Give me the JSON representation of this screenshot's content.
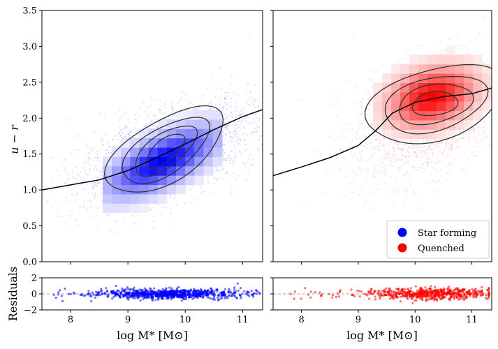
{
  "chart_data": [
    {
      "type": "scatter",
      "name": "star-forming-main",
      "xlabel": "log M* [M⊙]",
      "ylabel": "u − r",
      "xlim": [
        7.5,
        11.35
      ],
      "ylim": [
        0.0,
        3.5
      ],
      "xticks": [
        "8",
        "9",
        "10",
        "11"
      ],
      "xtick_values": [
        8,
        9,
        10,
        11
      ],
      "yticks": [
        "0.0",
        "0.5",
        "1.0",
        "1.5",
        "2.0",
        "2.5",
        "3.0",
        "3.5"
      ],
      "ytick_values": [
        0.0,
        0.5,
        1.0,
        1.5,
        2.0,
        2.5,
        3.0,
        3.5
      ],
      "color": "#0000ff",
      "cloud": {
        "center": [
          9.7,
          1.5
        ],
        "sx": 0.75,
        "sy": 0.35,
        "rho": 0.55,
        "n": 2600
      },
      "heat_center": [
        9.6,
        1.4
      ],
      "contour_center": [
        9.65,
        1.55
      ],
      "contour_levels": [
        {
          "a": 0.12,
          "b": 0.95,
          "angle_deg": 38
        },
        {
          "a": 0.28,
          "b": 0.72,
          "angle_deg": 40
        },
        {
          "a": 0.42,
          "b": 0.54,
          "angle_deg": 44
        },
        {
          "a": 0.58,
          "b": 0.36,
          "angle_deg": 48
        }
      ],
      "trend_line": {
        "x": [
          7.5,
          8.0,
          8.5,
          9.0,
          9.5,
          10.0,
          10.5,
          11.0,
          11.35
        ],
        "y": [
          1.0,
          1.07,
          1.14,
          1.27,
          1.45,
          1.64,
          1.84,
          2.02,
          2.12
        ]
      }
    },
    {
      "type": "scatter",
      "name": "quenched-main",
      "xlabel": "log M* [M⊙]",
      "ylabel": "",
      "xlim": [
        7.5,
        11.35
      ],
      "ylim": [
        0.0,
        3.5
      ],
      "xticks": [
        "8",
        "9",
        "10",
        "11"
      ],
      "xtick_values": [
        8,
        9,
        10,
        11
      ],
      "color": "#ff0000",
      "cloud": {
        "center": [
          10.2,
          2.0
        ],
        "sx": 0.65,
        "sy": 0.45,
        "rho": 0.4,
        "n": 1500
      },
      "heat_center": [
        10.3,
        2.3
      ],
      "contour_center": [
        10.35,
        2.2
      ],
      "contour_levels": [
        {
          "a": 0.1,
          "b": 0.95,
          "angle_deg": 20
        },
        {
          "a": 0.25,
          "b": 0.7,
          "angle_deg": 18
        },
        {
          "a": 0.4,
          "b": 0.5,
          "angle_deg": 15
        },
        {
          "a": 0.55,
          "b": 0.3,
          "angle_deg": 10
        }
      ],
      "trend_line": {
        "x": [
          7.5,
          8.0,
          8.5,
          9.0,
          9.3,
          9.6,
          10.0,
          10.5,
          11.0,
          11.35
        ],
        "y": [
          1.2,
          1.32,
          1.45,
          1.62,
          1.82,
          2.07,
          2.22,
          2.3,
          2.34,
          2.42
        ]
      },
      "legend": {
        "position": "lower-right",
        "entries": [
          {
            "label": "Star forming",
            "color": "#0000ff"
          },
          {
            "label": "Quenched",
            "color": "#ff0000"
          }
        ]
      }
    },
    {
      "type": "scatter",
      "name": "residuals-star-forming",
      "xlabel": "log M* [M⊙]",
      "ylabel": "Residuals",
      "xlim": [
        7.5,
        11.35
      ],
      "ylim": [
        -2,
        2
      ],
      "xticks": [
        "8",
        "9",
        "10",
        "11"
      ],
      "xtick_values": [
        8,
        9,
        10,
        11
      ],
      "yticks": [
        "2",
        "0",
        "−2"
      ],
      "ytick_values": [
        2,
        0,
        -2
      ],
      "color": "#0000ff",
      "points": {
        "x_range": [
          7.7,
          11.3
        ],
        "center": 9.7,
        "spread": 0.6,
        "sigma": 0.3,
        "n": 900
      },
      "reference_line": 0
    },
    {
      "type": "scatter",
      "name": "residuals-quenched",
      "xlabel": "log M* [M⊙]",
      "ylabel": "",
      "xlim": [
        7.5,
        11.35
      ],
      "ylim": [
        -2,
        2
      ],
      "xticks": [
        "8",
        "9",
        "10",
        "11"
      ],
      "xtick_values": [
        8,
        9,
        10,
        11
      ],
      "color": "#ff0000",
      "points": {
        "x_range": [
          7.8,
          11.3
        ],
        "center": 10.3,
        "spread": 0.55,
        "sigma": 0.35,
        "n": 650
      },
      "reference_line": 0
    }
  ]
}
